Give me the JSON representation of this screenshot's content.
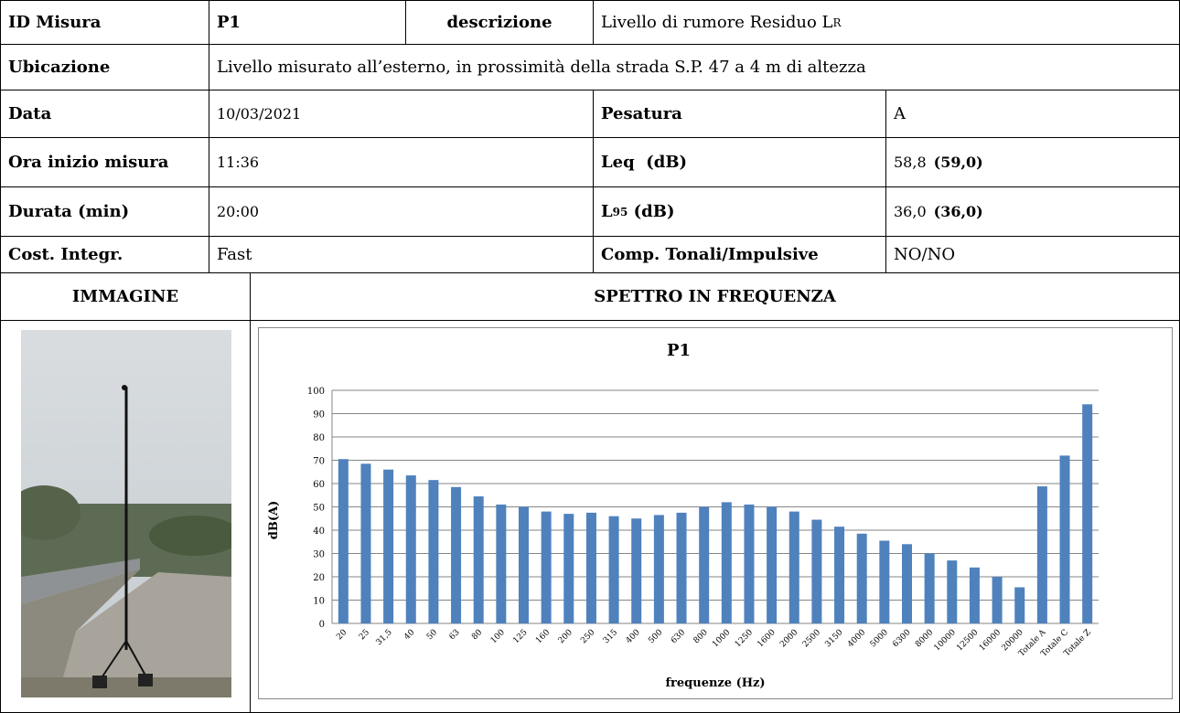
{
  "table": {
    "row1": {
      "label": "ID Misura",
      "id": "P1",
      "desc_label": "descrizione",
      "desc": {
        "text": "Livello di rumore Residuo L",
        "sub": "R"
      }
    },
    "row2": {
      "label": "Ubicazione",
      "value": "Livello misurato all’esterno, in prossimità della strada S.P. 47 a 4 m di altezza"
    },
    "row3": {
      "label": "Data",
      "value": "10/03/2021",
      "label2": "Pesatura",
      "value2": "A"
    },
    "row4": {
      "label": "Ora inizio misura",
      "value": "11:36",
      "label2": "Leq  (dB)",
      "value2": "58,8",
      "value2_bold": "(59,0)"
    },
    "row5": {
      "label": "Durata (min)",
      "value": "20:00",
      "label2": {
        "text": "L",
        "sub": "95",
        "rest": " (dB)"
      },
      "value2": "36,0",
      "value2_bold": "(36,0)"
    },
    "row6": {
      "label": "Cost. Integr.",
      "value": "Fast",
      "label2": "Comp. Tonali/Impulsive",
      "value2": "NO/NO"
    },
    "row7": {
      "left": "IMMAGINE",
      "right": "SPETTRO IN FREQUENZA"
    }
  },
  "chart_data": {
    "type": "bar",
    "title": "P1",
    "y_label": "dB(A)",
    "x_label": "frequenze (Hz)",
    "color": "#4f81bd",
    "categories": [
      "20",
      "25",
      "31,5",
      "40",
      "50",
      "63",
      "80",
      "100",
      "125",
      "160",
      "200",
      "250",
      "315",
      "400",
      "500",
      "630",
      "800",
      "1000",
      "1250",
      "1600",
      "2000",
      "2500",
      "3150",
      "4000",
      "5000",
      "6300",
      "8000",
      "10000",
      "12500",
      "16000",
      "20000",
      "Totale A",
      "Totale C",
      "Totale Z"
    ],
    "values": [
      70.5,
      68.5,
      66,
      63.5,
      61.5,
      58.5,
      54.5,
      51,
      50,
      48,
      47,
      47.5,
      46,
      45,
      46.5,
      47.5,
      50,
      52,
      51,
      50,
      48,
      44.5,
      41.5,
      38.5,
      35.5,
      34,
      30,
      27,
      24,
      20,
      15.5,
      58.8,
      72,
      94
    ],
    "ylim": [
      0,
      100
    ],
    "yticks": [
      0,
      10,
      20,
      30,
      40,
      50,
      60,
      70,
      80,
      90,
      100
    ],
    "grid": true
  }
}
